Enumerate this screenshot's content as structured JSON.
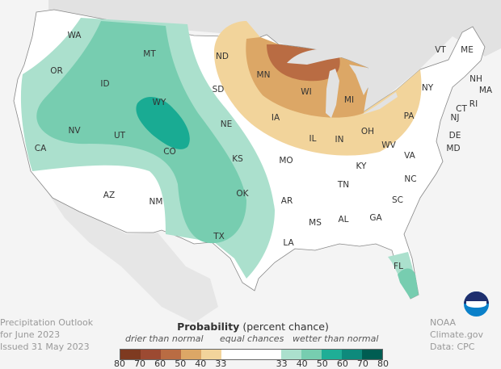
{
  "title_block": {
    "line1": "Precipitation Outlook",
    "line2": "for June 2023",
    "line3": "Issued 31 May 2023"
  },
  "credit": {
    "line1": "NOAA Climate.gov",
    "line2": "Data: CPC",
    "logo_text": "NOAA"
  },
  "legend": {
    "title_bold": "Probability",
    "title_rest": " (percent chance)",
    "drier": "drier than normal",
    "equal": "equal chances",
    "wetter": "wetter than normal",
    "dry_colors": [
      "#7e3a20",
      "#9c4a32",
      "#b96c43",
      "#dca766",
      "#f2d49b"
    ],
    "equal_color": "#ffffff",
    "wet_colors": [
      "#abe0cd",
      "#77cdb0",
      "#1fae96",
      "#0e8a7c",
      "#005d52"
    ],
    "ticks_dry": [
      "80",
      "70",
      "60",
      "50",
      "40",
      "33"
    ],
    "ticks_wet": [
      "33",
      "40",
      "50",
      "60",
      "70",
      "80"
    ]
  },
  "states": [
    {
      "abbr": "WA"
    },
    {
      "abbr": "OR"
    },
    {
      "abbr": "CA"
    },
    {
      "abbr": "ID"
    },
    {
      "abbr": "NV"
    },
    {
      "abbr": "MT"
    },
    {
      "abbr": "WY"
    },
    {
      "abbr": "UT"
    },
    {
      "abbr": "CO"
    },
    {
      "abbr": "AZ"
    },
    {
      "abbr": "NM"
    },
    {
      "abbr": "ND"
    },
    {
      "abbr": "SD"
    },
    {
      "abbr": "NE"
    },
    {
      "abbr": "KS"
    },
    {
      "abbr": "OK"
    },
    {
      "abbr": "TX"
    },
    {
      "abbr": "MN"
    },
    {
      "abbr": "IA"
    },
    {
      "abbr": "MO"
    },
    {
      "abbr": "AR"
    },
    {
      "abbr": "LA"
    },
    {
      "abbr": "WI"
    },
    {
      "abbr": "IL"
    },
    {
      "abbr": "MI"
    },
    {
      "abbr": "IN"
    },
    {
      "abbr": "OH"
    },
    {
      "abbr": "KY"
    },
    {
      "abbr": "TN"
    },
    {
      "abbr": "MS"
    },
    {
      "abbr": "AL"
    },
    {
      "abbr": "GA"
    },
    {
      "abbr": "FL"
    },
    {
      "abbr": "SC"
    },
    {
      "abbr": "NC"
    },
    {
      "abbr": "VA"
    },
    {
      "abbr": "WV"
    },
    {
      "abbr": "PA"
    },
    {
      "abbr": "NY"
    },
    {
      "abbr": "VT"
    },
    {
      "abbr": "ME"
    },
    {
      "abbr": "NH"
    },
    {
      "abbr": "MA"
    },
    {
      "abbr": "RI"
    },
    {
      "abbr": "CT"
    },
    {
      "abbr": "NJ"
    },
    {
      "abbr": "DE"
    },
    {
      "abbr": "MD"
    }
  ]
}
